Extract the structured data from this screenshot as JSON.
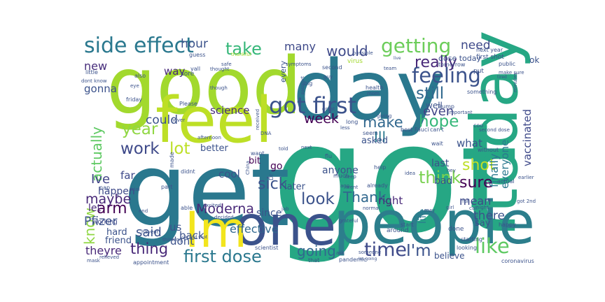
{
  "words": [
    {
      "text": "got",
      "color": "#26a784"
    },
    {
      "text": "get",
      "color": "#2a788e"
    },
    {
      "text": "good",
      "color": "#a2d92d"
    },
    {
      "text": "day",
      "color": "#2a788e"
    },
    {
      "text": "people",
      "color": "#2c7e8c"
    },
    {
      "text": "one",
      "color": "#3b528b"
    },
    {
      "text": "today",
      "color": "#26a784"
    },
    {
      "text": "feel",
      "color": "#bddf26"
    },
    {
      "text": "Im",
      "color": "#f2e51d"
    },
    {
      "text": "side effect",
      "color": "#2a788e"
    },
    {
      "text": "got first",
      "color": "#3b528b"
    },
    {
      "text": "feeling",
      "color": "#3b528b"
    },
    {
      "text": "like",
      "color": "#5ec962"
    },
    {
      "text": "first dose",
      "color": "#2a788e"
    },
    {
      "text": "time",
      "color": "#3e4989"
    },
    {
      "text": "getting",
      "color": "#6ccd5a"
    },
    {
      "text": "still",
      "color": "#31688e"
    },
    {
      "text": "take",
      "color": "#35b779"
    },
    {
      "text": "year",
      "color": "#90d743"
    },
    {
      "text": "really",
      "color": "#482878"
    },
    {
      "text": "work",
      "color": "#3e4989"
    },
    {
      "text": "lot",
      "color": "#bddf26"
    },
    {
      "text": "arm",
      "color": "#440154"
    },
    {
      "text": "thing",
      "color": "#482878"
    },
    {
      "text": "going",
      "color": "#31688e"
    },
    {
      "text": "I'm",
      "color": "#3b528b"
    },
    {
      "text": "think",
      "color": "#7ad151"
    },
    {
      "text": "would",
      "color": "#3e4989"
    },
    {
      "text": "Moderna",
      "color": "#482878"
    },
    {
      "text": "look",
      "color": "#3b528b"
    },
    {
      "text": "week",
      "color": "#440154"
    },
    {
      "text": "shot",
      "color": "#bddf26"
    },
    {
      "text": "hope",
      "color": "#35b779"
    },
    {
      "text": "sick",
      "color": "#3b528b"
    },
    {
      "text": "make",
      "color": "#31688e"
    },
    {
      "text": "Thank",
      "color": "#31688e"
    },
    {
      "text": "Ill",
      "color": "#2a788e"
    },
    {
      "text": "sure",
      "color": "#440154"
    },
    {
      "text": "actually",
      "color": "#5ec962"
    },
    {
      "text": "Ive",
      "color": "#414487"
    },
    {
      "text": "maybe",
      "color": "#482878"
    },
    {
      "text": "know",
      "color": "#90d743"
    },
    {
      "text": "Pfizer",
      "color": "#3b528b"
    },
    {
      "text": "hour",
      "color": "#3b528b"
    },
    {
      "text": "need",
      "color": "#3e4989"
    },
    {
      "text": "many",
      "color": "#3e4989"
    },
    {
      "text": "even",
      "color": "#414487"
    },
    {
      "text": "could",
      "color": "#3b528b"
    },
    {
      "text": "science",
      "color": "#472d7b"
    },
    {
      "text": "effective",
      "color": "#31688e"
    },
    {
      "text": "said",
      "color": "#3b528b"
    },
    {
      "text": "theyre",
      "color": "#482878"
    },
    {
      "text": "mean",
      "color": "#3e4989"
    },
    {
      "text": "there",
      "color": "#3b528b"
    },
    {
      "text": "finally",
      "color": "#2a788e"
    },
    {
      "text": "everyone",
      "color": "#2a788e"
    },
    {
      "text": "vaccinated",
      "color": "#3e4989"
    },
    {
      "text": "new",
      "color": "#472d7b"
    },
    {
      "text": "gonna",
      "color": "#3b528b"
    },
    {
      "text": "way",
      "color": "#482878"
    },
    {
      "text": "far",
      "color": "#3e4989"
    },
    {
      "text": "happen",
      "color": "#3e4989"
    },
    {
      "text": "let",
      "color": "#482878"
    },
    {
      "text": "us",
      "color": "#3b528b"
    },
    {
      "text": "dont",
      "color": "#3b528b"
    },
    {
      "text": "back",
      "color": "#3b528b"
    },
    {
      "text": "cool",
      "color": "#3b528b"
    },
    {
      "text": "better",
      "color": "#3b528b"
    },
    {
      "text": "bit",
      "color": "#440154"
    },
    {
      "text": "go",
      "color": "#440154"
    },
    {
      "text": "asked",
      "color": "#3b528b"
    },
    {
      "text": "what",
      "color": "#3b528b"
    },
    {
      "text": "last",
      "color": "#3b528b"
    },
    {
      "text": "bad",
      "color": "#3b528b"
    },
    {
      "text": "right",
      "color": "#482878"
    },
    {
      "text": "since",
      "color": "#3b528b"
    },
    {
      "text": "anyone",
      "color": "#3b528b"
    },
    {
      "text": "later",
      "color": "#3b528b"
    },
    {
      "text": "hard",
      "color": "#3b528b"
    },
    {
      "text": "friend",
      "color": "#3b528b"
    },
    {
      "text": "working",
      "color": "#3e4989"
    },
    {
      "text": "life",
      "color": "#2a788e"
    },
    {
      "text": "believe",
      "color": "#3b528b"
    },
    {
      "text": "say",
      "color": "#3b528b"
    },
    {
      "text": "ok",
      "color": "#3b528b"
    },
    {
      "text": "every",
      "color": "#3b528b"
    },
    {
      "text": "well",
      "color": "#3b528b"
    },
    {
      "text": "dose today",
      "color": "#3b528b"
    },
    {
      "text": "first shot",
      "color": "#3b528b"
    },
    {
      "text": "tomorrow",
      "color": "#3b528b"
    },
    {
      "text": "guess",
      "color": "#3b528b"
    },
    {
      "text": "yall",
      "color": "#3b528b"
    },
    {
      "text": "next year",
      "color": "#3b528b"
    },
    {
      "text": "safe",
      "color": "#3b528b"
    },
    {
      "text": "thankful",
      "color": "#a2d92d"
    },
    {
      "text": "symptoms",
      "color": "#3b528b"
    },
    {
      "text": "virus",
      "color": "#a2d92d"
    },
    {
      "text": "possible",
      "color": "#3b528b"
    },
    {
      "text": "put",
      "color": "#3b528b"
    },
    {
      "text": "public",
      "color": "#3b528b"
    },
    {
      "text": "make sure",
      "color": "#3b528b"
    },
    {
      "text": "little",
      "color": "#3b528b"
    },
    {
      "text": "also",
      "color": "#3b528b"
    },
    {
      "text": "dont know",
      "color": "#3b528b"
    },
    {
      "text": "sore",
      "color": "#3b528b"
    },
    {
      "text": "second",
      "color": "#3b528b"
    },
    {
      "text": "health",
      "color": "#3b528b"
    },
    {
      "text": "mom",
      "color": "#3b528b"
    },
    {
      "text": "something",
      "color": "#3b528b"
    },
    {
      "text": "Trump",
      "color": "#3b528b"
    },
    {
      "text": "Fauci",
      "color": "#3b528b"
    },
    {
      "text": "best",
      "color": "#3b528b"
    },
    {
      "text": "can't",
      "color": "#3b528b"
    },
    {
      "text": "coo",
      "color": "#3b528b"
    },
    {
      "text": "second dose",
      "color": "#3b528b"
    },
    {
      "text": "wait",
      "color": "#3b528b"
    },
    {
      "text": "important",
      "color": "#3b528b"
    },
    {
      "text": "Please",
      "color": "#3b528b"
    },
    {
      "text": "never",
      "color": "#3b528b"
    },
    {
      "text": "afternoon",
      "color": "#3b528b"
    },
    {
      "text": "though",
      "color": "#3b528b"
    },
    {
      "text": "received",
      "color": "#3b528b"
    },
    {
      "text": "DNA",
      "color": "#3b528b"
    },
    {
      "text": "less",
      "color": "#3b528b"
    },
    {
      "text": "long",
      "color": "#3b528b"
    },
    {
      "text": "seem",
      "color": "#3b528b"
    },
    {
      "text": "giving",
      "color": "#3b528b"
    },
    {
      "text": "great",
      "color": "#3b528b"
    },
    {
      "text": "big",
      "color": "#3b528b"
    },
    {
      "text": "guy",
      "color": "#3b528b"
    },
    {
      "text": "passport",
      "color": "#3b528b"
    },
    {
      "text": "thought",
      "color": "#3b528b"
    },
    {
      "text": "eye",
      "color": "#3b528b"
    },
    {
      "text": "friday",
      "color": "#3b528b"
    },
    {
      "text": "nap",
      "color": "#3b528b"
    },
    {
      "text": "trial",
      "color": "#3b528b"
    },
    {
      "text": "part",
      "color": "#3b528b"
    },
    {
      "text": "end",
      "color": "#3b528b"
    },
    {
      "text": "able",
      "color": "#3b528b"
    },
    {
      "text": "decided",
      "color": "#3b528b"
    },
    {
      "text": "excited",
      "color": "#3b528b"
    },
    {
      "text": "made",
      "color": "#3b528b"
    },
    {
      "text": "didnt",
      "color": "#3b528b"
    },
    {
      "text": "China",
      "color": "#3b528b"
    },
    {
      "text": "Dr",
      "color": "#3b528b"
    },
    {
      "text": "want",
      "color": "#3b528b"
    },
    {
      "text": "told",
      "color": "#3b528b"
    },
    {
      "text": "flu",
      "color": "#3b528b"
    },
    {
      "text": "next",
      "color": "#3b528b"
    },
    {
      "text": "much",
      "color": "#3b528b"
    },
    {
      "text": "ago",
      "color": "#3b528b"
    },
    {
      "text": "went",
      "color": "#3b528b"
    },
    {
      "text": "keep",
      "color": "#3b528b"
    },
    {
      "text": "help",
      "color": "#3b528b"
    },
    {
      "text": "already",
      "color": "#3b528b"
    },
    {
      "text": "idea",
      "color": "#3b528b"
    },
    {
      "text": "without",
      "color": "#3b528b"
    },
    {
      "text": "hey",
      "color": "#3b528b"
    },
    {
      "text": "actual",
      "color": "#3b528b"
    },
    {
      "text": "earlier",
      "color": "#3b528b"
    },
    {
      "text": "got 2nd",
      "color": "#3b528b"
    },
    {
      "text": "night",
      "color": "#3b528b"
    },
    {
      "text": "call",
      "color": "#3b528b"
    },
    {
      "text": "full",
      "color": "#3b528b"
    },
    {
      "text": "girl",
      "color": "#3b528b"
    },
    {
      "text": "may",
      "color": "#3b528b"
    },
    {
      "text": "start",
      "color": "#3b528b"
    },
    {
      "text": "grateful",
      "color": "#3b528b"
    },
    {
      "text": "jab",
      "color": "#3b528b"
    },
    {
      "text": "normal",
      "color": "#3b528b"
    },
    {
      "text": "thinking",
      "color": "#3b528b"
    },
    {
      "text": "havent",
      "color": "#3b528b"
    },
    {
      "text": "second shot",
      "color": "#3b528b"
    },
    {
      "text": "relieved",
      "color": "#3b528b"
    },
    {
      "text": "mask",
      "color": "#3b528b"
    },
    {
      "text": "appointment",
      "color": "#3b528b"
    },
    {
      "text": "scientist",
      "color": "#3b528b"
    },
    {
      "text": "someone",
      "color": "#3b528b"
    },
    {
      "text": "ask",
      "color": "#3b528b"
    },
    {
      "text": "pandemic",
      "color": "#3b528b"
    },
    {
      "text": "Im going",
      "color": "#3b528b"
    },
    {
      "text": "that",
      "color": "#3b528b"
    },
    {
      "text": "around",
      "color": "#3b528b"
    },
    {
      "text": "done",
      "color": "#3b528b"
    },
    {
      "text": "happy",
      "color": "#3b528b"
    },
    {
      "text": "world",
      "color": "#3b528b"
    },
    {
      "text": "starting",
      "color": "#3b528b"
    },
    {
      "text": "looking",
      "color": "#3b528b"
    },
    {
      "text": "coronavirus",
      "color": "#3b528b"
    },
    {
      "text": "minutes",
      "color": "#3b528b"
    },
    {
      "text": "tired",
      "color": "#3b528b"
    },
    {
      "text": "team",
      "color": "#3b528b"
    },
    {
      "text": "live",
      "color": "#3b528b"
    }
  ]
}
